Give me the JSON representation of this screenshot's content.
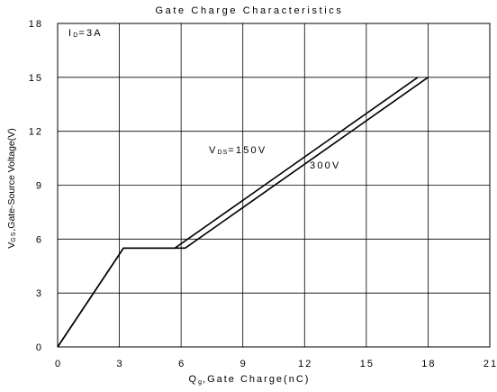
{
  "chart_data": {
    "type": "line",
    "title": "Gate Charge Characteristics",
    "xlabel": {
      "q": "Q",
      "sub": "g",
      "rest": ",Gate Charge(nC)"
    },
    "ylabel": {
      "v": "V",
      "sub": "GS",
      "rest": ",Gate-Source Voltage(V)"
    },
    "xlim": [
      0,
      21
    ],
    "ylim": [
      0,
      18
    ],
    "xticks": [
      0,
      3,
      6,
      9,
      12,
      15,
      18,
      21
    ],
    "yticks": [
      0,
      3,
      6,
      9,
      12,
      15,
      18
    ],
    "grid": true,
    "condition_label": {
      "main": "I",
      "sub": "D",
      "rest": "=3A"
    },
    "series": [
      {
        "name": "VDS=150V",
        "label": {
          "main": "V",
          "sub": "DS",
          "rest": "=150V"
        },
        "x": [
          0,
          3.2,
          5.7,
          17.5
        ],
        "y": [
          0,
          5.5,
          5.5,
          15.0
        ]
      },
      {
        "name": "300V",
        "label": {
          "main": "300V",
          "sub": "",
          "rest": ""
        },
        "x": [
          0,
          3.2,
          6.2,
          18.0
        ],
        "y": [
          0,
          5.5,
          5.5,
          15.0
        ]
      }
    ]
  }
}
